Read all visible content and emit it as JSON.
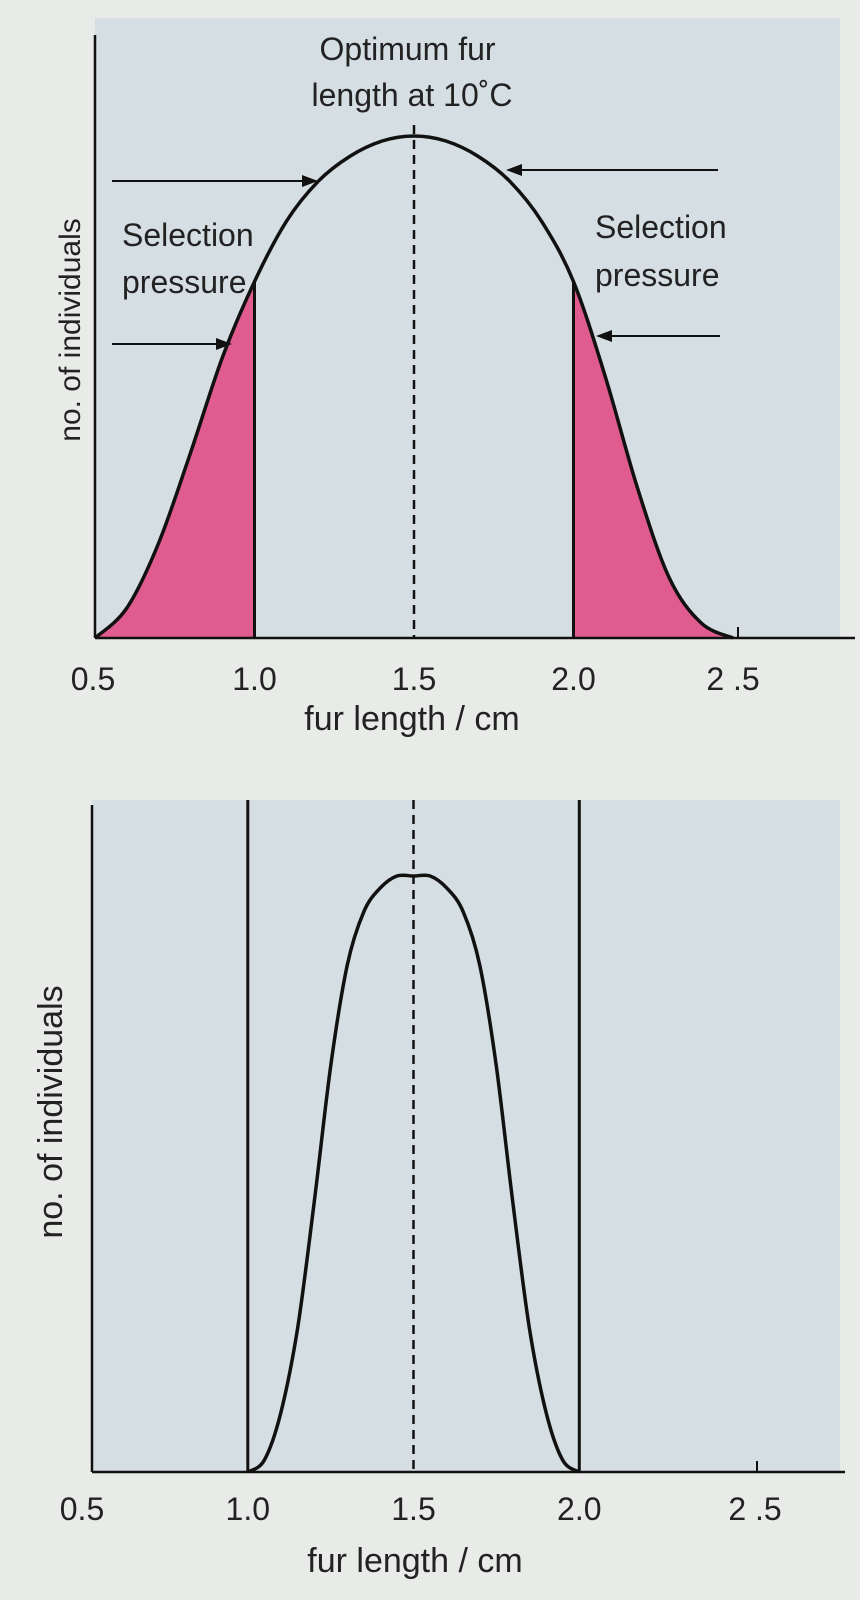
{
  "chart_data": [
    {
      "type": "line",
      "title": "",
      "xlabel": "fur length / cm",
      "ylabel": "no. of individuals",
      "xlim": [
        0.5,
        2.5
      ],
      "ylim": [
        0,
        1
      ],
      "x_ticks": [
        "0.5",
        "1.0",
        "1.5",
        "2.0",
        "2 .5"
      ],
      "series": [
        {
          "x": [
            0.5,
            0.6,
            0.7,
            0.8,
            0.9,
            1.0,
            1.1,
            1.2,
            1.3,
            1.4,
            1.5,
            1.6,
            1.7,
            1.8,
            1.9,
            2.0,
            2.1,
            2.2,
            2.3,
            2.4,
            2.5
          ],
          "values": [
            0.0,
            0.06,
            0.19,
            0.37,
            0.56,
            0.71,
            0.83,
            0.91,
            0.96,
            0.99,
            1.0,
            0.99,
            0.96,
            0.91,
            0.83,
            0.71,
            0.52,
            0.3,
            0.12,
            0.03,
            0.0
          ]
        }
      ],
      "shaded_regions": [
        {
          "x": [
            0.5,
            1.0
          ],
          "color": "#e05b8e"
        },
        {
          "x": [
            2.0,
            2.5
          ],
          "color": "#e05b8e"
        }
      ],
      "vertical_lines": [
        {
          "x": 1.0,
          "style": "solid"
        },
        {
          "x": 1.5,
          "style": "dashed"
        },
        {
          "x": 2.0,
          "style": "solid"
        }
      ],
      "annotations": [
        {
          "text_lines": [
            "Optimum fur",
            "length at 10˚C"
          ]
        },
        {
          "text_lines": [
            "Selection",
            "pressure"
          ],
          "side": "left"
        },
        {
          "text_lines": [
            "Selection",
            "pressure"
          ],
          "side": "right"
        }
      ],
      "arrows": [
        "right",
        "right",
        "left",
        "left"
      ],
      "grid": false,
      "legend": "none"
    },
    {
      "type": "line",
      "title": "",
      "xlabel": "fur length / cm",
      "ylabel": "no. of individuals",
      "xlim": [
        0.5,
        2.5
      ],
      "ylim": [
        0,
        1
      ],
      "x_ticks": [
        "0.5",
        "1.0",
        "1.5",
        "2.0",
        "2 .5"
      ],
      "series": [
        {
          "x": [
            1.0,
            1.05,
            1.1,
            1.15,
            1.2,
            1.25,
            1.3,
            1.35,
            1.4,
            1.45,
            1.5,
            1.55,
            1.6,
            1.65,
            1.7,
            1.75,
            1.8,
            1.85,
            1.9,
            1.95,
            2.0
          ],
          "values": [
            0.0,
            0.02,
            0.1,
            0.24,
            0.45,
            0.68,
            0.85,
            0.94,
            0.98,
            1.0,
            1.0,
            1.0,
            0.98,
            0.94,
            0.85,
            0.68,
            0.45,
            0.24,
            0.1,
            0.02,
            0.0
          ]
        }
      ],
      "vertical_lines": [
        {
          "x": 1.0,
          "style": "solid"
        },
        {
          "x": 1.5,
          "style": "dashed"
        },
        {
          "x": 2.0,
          "style": "solid"
        }
      ],
      "grid": false,
      "legend": "none"
    }
  ],
  "colors": {
    "panel": "#d5dee3",
    "line": "#111111",
    "shade": "#e05b8e"
  }
}
